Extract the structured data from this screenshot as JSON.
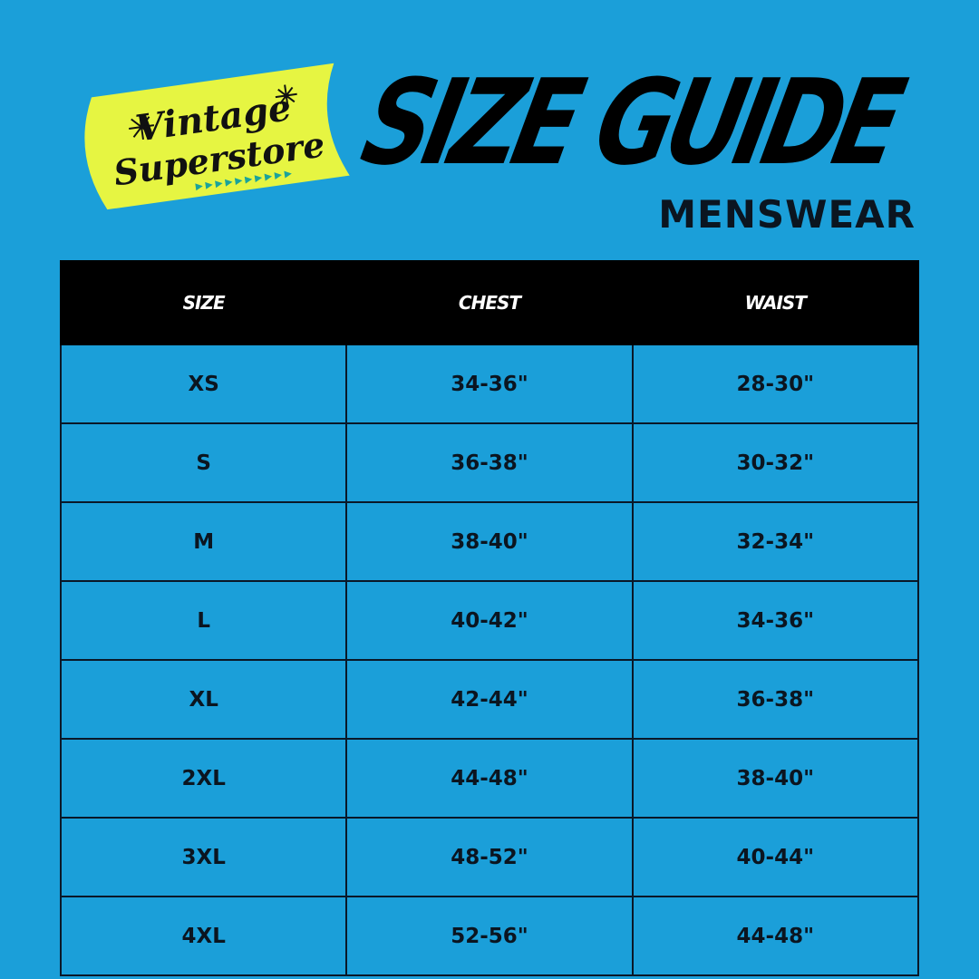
{
  "logo": {
    "text_line1": "Vintage",
    "text_line2": "Superstore",
    "colors": {
      "badge": "#e6f542",
      "arrows": "#1aa39a"
    }
  },
  "header": {
    "title": "SIZE GUIDE",
    "subtitle": "MENSWEAR"
  },
  "table": {
    "columns": [
      "SIZE",
      "CHEST",
      "WAIST"
    ],
    "rows": [
      [
        "XS",
        "34-36\"",
        "28-30\""
      ],
      [
        "S",
        "36-38\"",
        "30-32\""
      ],
      [
        "M",
        "38-40\"",
        "32-34\""
      ],
      [
        "L",
        "40-42\"",
        "34-36\""
      ],
      [
        "XL",
        "42-44\"",
        "36-38\""
      ],
      [
        "2XL",
        "44-48\"",
        "38-40\""
      ],
      [
        "3XL",
        "48-52\"",
        "40-44\""
      ],
      [
        "4XL",
        "52-56\"",
        "44-48\""
      ]
    ]
  },
  "colors": {
    "background": "#1b9fd9",
    "header_bg": "#000000"
  }
}
